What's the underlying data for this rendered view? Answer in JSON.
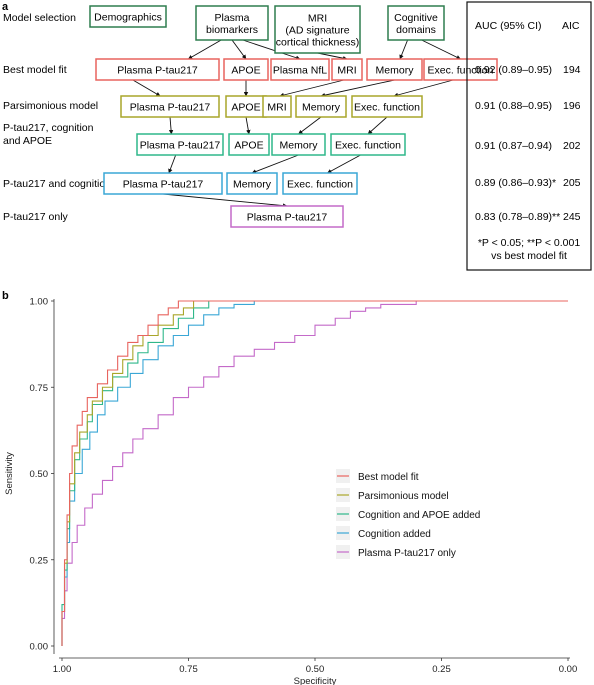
{
  "panel_a": {
    "label": "a",
    "rows": [
      {
        "key": "model_selection",
        "label_lines": [
          "Model selection"
        ]
      },
      {
        "key": "best",
        "label_lines": [
          "Best model fit"
        ]
      },
      {
        "key": "pars",
        "label_lines": [
          "Parsimonious model"
        ]
      },
      {
        "key": "cogapoe",
        "label_lines": [
          "P-tau217, cognition",
          "and APOE"
        ]
      },
      {
        "key": "cog",
        "label_lines": [
          "P-tau217 and cognition"
        ]
      },
      {
        "key": "ptau",
        "label_lines": [
          "P-tau217 only"
        ]
      }
    ],
    "top_nodes": [
      {
        "id": "demo",
        "lines": [
          "Demographics"
        ]
      },
      {
        "id": "plasma",
        "lines": [
          "Plasma",
          "biomarkers"
        ]
      },
      {
        "id": "mri",
        "lines": [
          "MRI",
          "(AD signature",
          "cortical thickness)"
        ]
      },
      {
        "id": "cogdom",
        "lines": [
          "Cognitive",
          "domains"
        ]
      }
    ],
    "model_nodes": {
      "best": [
        {
          "id": "b_ptau",
          "text": "Plasma P-tau217"
        },
        {
          "id": "b_apoe",
          "text": "APOE"
        },
        {
          "id": "b_nfl",
          "text": "Plasma NfL"
        },
        {
          "id": "b_mri",
          "text": "MRI"
        },
        {
          "id": "b_mem",
          "text": "Memory"
        },
        {
          "id": "b_exec",
          "text": "Exec. function"
        }
      ],
      "pars": [
        {
          "id": "p_ptau",
          "text": "Plasma P-tau217"
        },
        {
          "id": "p_apoe",
          "text": "APOE"
        },
        {
          "id": "p_mri",
          "text": "MRI"
        },
        {
          "id": "p_mem",
          "text": "Memory"
        },
        {
          "id": "p_exec",
          "text": "Exec. function"
        }
      ],
      "cogapoe": [
        {
          "id": "c_ptau",
          "text": "Plasma P-tau217"
        },
        {
          "id": "c_apoe",
          "text": "APOE"
        },
        {
          "id": "c_mem",
          "text": "Memory"
        },
        {
          "id": "c_exec",
          "text": "Exec. function"
        }
      ],
      "cog": [
        {
          "id": "g_ptau",
          "text": "Plasma P-tau217"
        },
        {
          "id": "g_mem",
          "text": "Memory"
        },
        {
          "id": "g_exec",
          "text": "Exec. function"
        }
      ],
      "ptau": [
        {
          "id": "o_ptau",
          "text": "Plasma P-tau217"
        }
      ]
    },
    "table": {
      "headers": [
        "AUC (95% CI)",
        "AIC"
      ],
      "rows": [
        {
          "key": "best",
          "auc": "0.92 (0.89–0.95)",
          "aic": "194"
        },
        {
          "key": "pars",
          "auc": "0.91 (0.88–0.95)",
          "aic": "196"
        },
        {
          "key": "cogapoe",
          "auc": "0.91 (0.87–0.94)",
          "aic": "202"
        },
        {
          "key": "cog",
          "auc": "0.89 (0.86–0.93)*",
          "aic": "205"
        },
        {
          "key": "ptau",
          "auc": "0.83 (0.78–0.89)**",
          "aic": "245"
        }
      ],
      "footnote_lines": [
        "*P < 0.05; **P < 0.001",
        "vs best model fit"
      ]
    },
    "colors": {
      "dark_green": "#2e7d4f",
      "best": "#e8645f",
      "pars": "#a9a62a",
      "cogapoe": "#2fb78a",
      "cog": "#3aa7d6",
      "ptau": "#c46ac9",
      "black": "#111111"
    }
  },
  "panel_b": {
    "label": "b",
    "chart_data": {
      "type": "line",
      "xlabel": "Specificity",
      "ylabel": "Sensitivity",
      "x_reversed": true,
      "xlim": [
        1.0,
        0.0
      ],
      "ylim": [
        0.0,
        1.0
      ],
      "x_ticks": [
        "1.00",
        "0.75",
        "0.50",
        "0.25",
        "0.00"
      ],
      "x_tick_values": [
        1.0,
        0.75,
        0.5,
        0.25,
        0.0
      ],
      "y_ticks": [
        "0.00",
        "0.25",
        "0.50",
        "0.75",
        "1.00"
      ],
      "y_tick_values": [
        0.0,
        0.25,
        0.5,
        0.75,
        1.0
      ],
      "legend_position": "center-right",
      "series": [
        {
          "name": "Best model fit",
          "color": "#e8645f",
          "points": [
            [
              1.0,
              0.0
            ],
            [
              1.0,
              0.1
            ],
            [
              0.995,
              0.25
            ],
            [
              0.99,
              0.38
            ],
            [
              0.985,
              0.5
            ],
            [
              0.98,
              0.58
            ],
            [
              0.97,
              0.64
            ],
            [
              0.96,
              0.68
            ],
            [
              0.95,
              0.72
            ],
            [
              0.93,
              0.76
            ],
            [
              0.91,
              0.8
            ],
            [
              0.89,
              0.84
            ],
            [
              0.87,
              0.88
            ],
            [
              0.85,
              0.9
            ],
            [
              0.83,
              0.93
            ],
            [
              0.81,
              0.96
            ],
            [
              0.79,
              0.98
            ],
            [
              0.77,
              1.0
            ],
            [
              0.5,
              1.0
            ],
            [
              0.0,
              1.0
            ]
          ]
        },
        {
          "name": "Parsimonious model",
          "color": "#a9a62a",
          "points": [
            [
              1.0,
              0.0
            ],
            [
              1.0,
              0.1
            ],
            [
              0.995,
              0.24
            ],
            [
              0.99,
              0.36
            ],
            [
              0.985,
              0.47
            ],
            [
              0.975,
              0.56
            ],
            [
              0.965,
              0.62
            ],
            [
              0.95,
              0.67
            ],
            [
              0.94,
              0.71
            ],
            [
              0.92,
              0.75
            ],
            [
              0.9,
              0.79
            ],
            [
              0.88,
              0.83
            ],
            [
              0.86,
              0.87
            ],
            [
              0.84,
              0.9
            ],
            [
              0.81,
              0.93
            ],
            [
              0.78,
              0.96
            ],
            [
              0.76,
              0.98
            ],
            [
              0.74,
              1.0
            ],
            [
              0.5,
              1.0
            ],
            [
              0.0,
              1.0
            ]
          ]
        },
        {
          "name": "Cognition and APOE added",
          "color": "#2fb78a",
          "points": [
            [
              1.0,
              0.0
            ],
            [
              1.0,
              0.12
            ],
            [
              0.995,
              0.22
            ],
            [
              0.99,
              0.34
            ],
            [
              0.985,
              0.45
            ],
            [
              0.975,
              0.54
            ],
            [
              0.965,
              0.6
            ],
            [
              0.95,
              0.65
            ],
            [
              0.94,
              0.7
            ],
            [
              0.92,
              0.74
            ],
            [
              0.9,
              0.78
            ],
            [
              0.87,
              0.82
            ],
            [
              0.85,
              0.85
            ],
            [
              0.83,
              0.88
            ],
            [
              0.8,
              0.92
            ],
            [
              0.77,
              0.95
            ],
            [
              0.74,
              0.98
            ],
            [
              0.71,
              1.0
            ],
            [
              0.5,
              1.0
            ],
            [
              0.0,
              1.0
            ]
          ]
        },
        {
          "name": "Cognition added",
          "color": "#3aa7d6",
          "points": [
            [
              1.0,
              0.0
            ],
            [
              1.0,
              0.1
            ],
            [
              0.995,
              0.2
            ],
            [
              0.99,
              0.3
            ],
            [
              0.985,
              0.42
            ],
            [
              0.975,
              0.5
            ],
            [
              0.96,
              0.57
            ],
            [
              0.945,
              0.62
            ],
            [
              0.93,
              0.67
            ],
            [
              0.915,
              0.71
            ],
            [
              0.89,
              0.75
            ],
            [
              0.865,
              0.79
            ],
            [
              0.84,
              0.83
            ],
            [
              0.81,
              0.87
            ],
            [
              0.78,
              0.9
            ],
            [
              0.75,
              0.93
            ],
            [
              0.72,
              0.96
            ],
            [
              0.69,
              0.98
            ],
            [
              0.66,
              0.99
            ],
            [
              0.62,
              1.0
            ],
            [
              0.5,
              1.0
            ],
            [
              0.0,
              1.0
            ]
          ]
        },
        {
          "name": "Plasma P-tau217 only",
          "color": "#c46ac9",
          "points": [
            [
              1.0,
              0.0
            ],
            [
              1.0,
              0.08
            ],
            [
              0.995,
              0.16
            ],
            [
              0.99,
              0.24
            ],
            [
              0.98,
              0.3
            ],
            [
              0.97,
              0.35
            ],
            [
              0.955,
              0.4
            ],
            [
              0.94,
              0.44
            ],
            [
              0.92,
              0.48
            ],
            [
              0.9,
              0.52
            ],
            [
              0.88,
              0.56
            ],
            [
              0.86,
              0.6
            ],
            [
              0.84,
              0.63
            ],
            [
              0.81,
              0.67
            ],
            [
              0.78,
              0.72
            ],
            [
              0.75,
              0.75
            ],
            [
              0.72,
              0.78
            ],
            [
              0.69,
              0.81
            ],
            [
              0.66,
              0.84
            ],
            [
              0.62,
              0.86
            ],
            [
              0.58,
              0.88
            ],
            [
              0.54,
              0.9
            ],
            [
              0.5,
              0.93
            ],
            [
              0.46,
              0.95
            ],
            [
              0.43,
              0.97
            ],
            [
              0.4,
              0.98
            ],
            [
              0.37,
              0.99
            ],
            [
              0.3,
              1.0
            ],
            [
              0.2,
              1.0
            ],
            [
              0.0,
              1.0
            ]
          ]
        }
      ]
    }
  }
}
